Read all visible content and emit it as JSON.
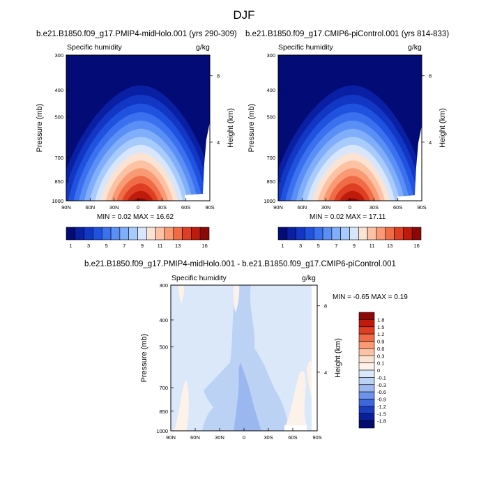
{
  "title": "DJF",
  "panels": [
    {
      "title": "b.e21.B1850.f09_g17.PMIP4-midHolo.001 (yrs 290-309)",
      "left_label": "Specific humidity",
      "right_label": "g/kg",
      "ylabel": "Pressure (mb)",
      "ylabel_right": "Height (km)",
      "stats": "MIN =   0.02  MAX =  16.62"
    },
    {
      "title": "b.e21.B1850.f09_g17.CMIP6-piControl.001 (yrs 814-833)",
      "left_label": "Specific humidity",
      "right_label": "g/kg",
      "ylabel": "Pressure (mb)",
      "ylabel_right": "Height (km)",
      "stats": "MIN =   0.02  MAX =  17.11"
    },
    {
      "title": "b.e21.B1850.f09_g17.PMIP4-midHolo.001 - b.e21.B1850.f09_g17.CMIP6-piControl.001",
      "left_label": "Specific humidity",
      "right_label": "g/kg",
      "ylabel": "Pressure (mb)",
      "ylabel_right": "Height (km)",
      "stats": "MIN =  -0.65  MAX =   0.19"
    }
  ],
  "chart_data": [
    {
      "type": "heatmap",
      "x_ticks": [
        "90N",
        "60N",
        "30N",
        "0",
        "30S",
        "60S",
        "90S"
      ],
      "y_ticks": [
        "300",
        "400",
        "500",
        "700",
        "850",
        "1000"
      ],
      "y_ticks_right": [
        "8",
        "4"
      ],
      "colorbar": {
        "orientation": "horizontal",
        "labels": [
          "1",
          "3",
          "5",
          "7",
          "9",
          "11",
          "13",
          "16"
        ],
        "colors": [
          "#030c76",
          "#0a20a4",
          "#1237c4",
          "#2052e0",
          "#3b70ef",
          "#5a8ff6",
          "#80aefa",
          "#a8cbfd",
          "#d8e6fc",
          "#fbe3d4",
          "#fcc2a3",
          "#f99a74",
          "#f06c47",
          "#de3e21",
          "#bf1b0c",
          "#8e0707"
        ]
      },
      "description_min": 0.02,
      "description_max": 16.62
    },
    {
      "type": "heatmap",
      "x_ticks": [
        "90N",
        "60N",
        "30N",
        "0",
        "30S",
        "60S",
        "90S"
      ],
      "y_ticks": [
        "300",
        "400",
        "500",
        "700",
        "850",
        "1000"
      ],
      "y_ticks_right": [
        "8",
        "4"
      ],
      "colorbar": {
        "orientation": "horizontal",
        "labels": [
          "1",
          "3",
          "5",
          "7",
          "9",
          "11",
          "13",
          "16"
        ],
        "colors": [
          "#030c76",
          "#0a20a4",
          "#1237c4",
          "#2052e0",
          "#3b70ef",
          "#5a8ff6",
          "#80aefa",
          "#a8cbfd",
          "#d8e6fc",
          "#fbe3d4",
          "#fcc2a3",
          "#f99a74",
          "#f06c47",
          "#de3e21",
          "#bf1b0c",
          "#8e0707"
        ]
      },
      "description_min": 0.02,
      "description_max": 17.11
    },
    {
      "type": "heatmap",
      "x_ticks": [
        "90N",
        "60N",
        "30N",
        "0",
        "30S",
        "60S",
        "90S"
      ],
      "y_ticks": [
        "300",
        "400",
        "500",
        "700",
        "850",
        "1000"
      ],
      "y_ticks_right": [
        "8",
        "4"
      ],
      "colorbar": {
        "orientation": "vertical",
        "labels": [
          "1.8",
          "1.5",
          "1.2",
          "0.9",
          "0.6",
          "0.3",
          "0.1",
          "0",
          "-0.1",
          "-0.3",
          "-0.6",
          "-0.9",
          "-1.2",
          "-1.5",
          "-1.8"
        ],
        "colors": [
          "#8e0707",
          "#bf1b0c",
          "#de3e21",
          "#f06c47",
          "#f99a74",
          "#fcc2a3",
          "#fbe3d4",
          "#fdf2ea",
          "#dbe8f9",
          "#bcd2f4",
          "#9ab8ef",
          "#6f93ea",
          "#3f67dc",
          "#1b3cbd",
          "#0a1f96",
          "#030c6e"
        ]
      },
      "description_min": -0.65,
      "description_max": 0.19
    }
  ]
}
